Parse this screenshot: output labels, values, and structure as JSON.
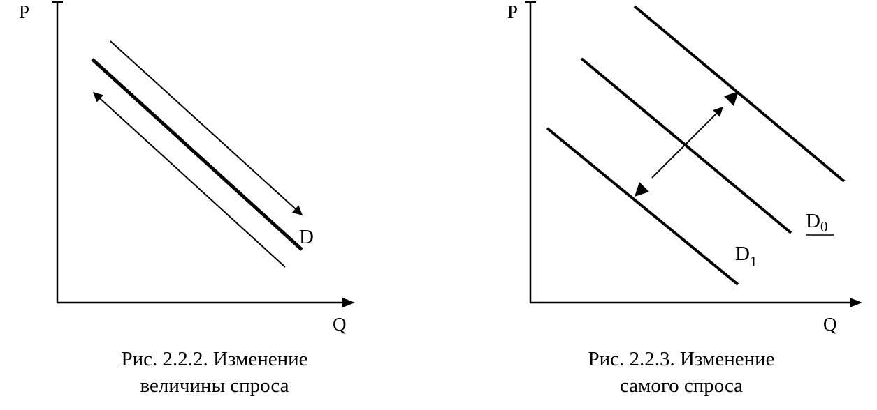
{
  "colors": {
    "ink": "#000000",
    "background": "#ffffff"
  },
  "figure_left": {
    "y_axis_label": "P",
    "x_axis_label": "Q",
    "curve_label": "D",
    "caption_line1": "Рис. 2.2.2. Изменение",
    "caption_line2": "величины спроса"
  },
  "figure_right": {
    "y_axis_label": "P",
    "x_axis_label": "Q",
    "curve0_label_main": "D",
    "curve0_label_sub": "0",
    "curve1_label_main": "D",
    "curve1_label_sub": "1",
    "caption_line1": "Рис. 2.2.3. Изменение",
    "caption_line2": "самого спроса"
  }
}
